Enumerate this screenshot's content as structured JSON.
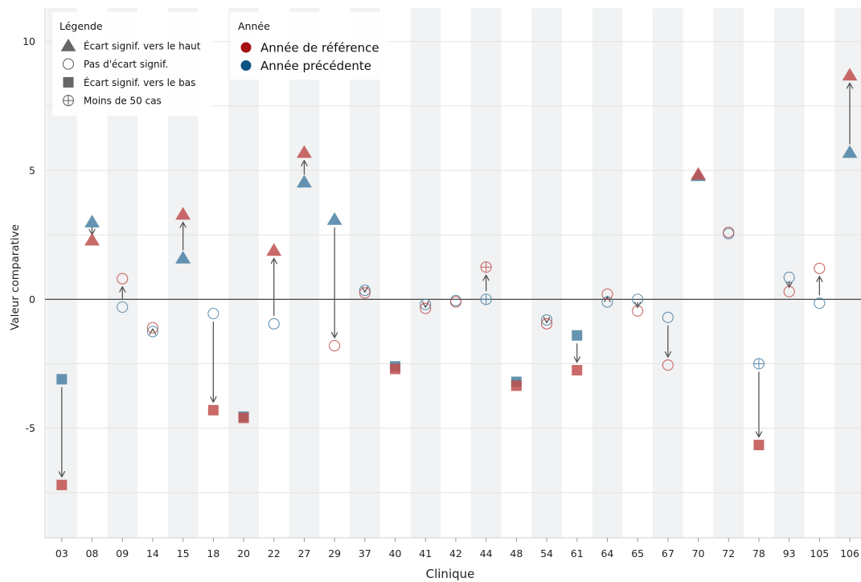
{
  "colors": {
    "reference": "#c0504d",
    "previous": "#4a81a3",
    "legend_reference": "#a50f15",
    "legend_previous": "#0b5483",
    "band": "#f1f2f3",
    "arrow": "#555555",
    "legend_shape": "#666666"
  },
  "legend": {
    "symbols_title": "Légende",
    "symbols": [
      {
        "shape": "triangle",
        "label": "Écart signif. vers le haut"
      },
      {
        "shape": "circle",
        "label": "Pas d'écart signif."
      },
      {
        "shape": "square",
        "label": "Écart signif. vers le bas"
      },
      {
        "shape": "crosscircle",
        "label": "Moins de 50 cas"
      }
    ],
    "years_title": "Année",
    "years": [
      {
        "key": "reference",
        "label": "Année de référence"
      },
      {
        "key": "previous",
        "label": "Année précédente"
      }
    ]
  },
  "chart_data": {
    "type": "scatter",
    "xlabel": "Clinique",
    "ylabel": "Valeur comparative",
    "ylim": [
      -9.25,
      11.3
    ],
    "yticks": [
      -5,
      0,
      5,
      10
    ],
    "grid": true,
    "legend_placement": "top-left",
    "categories": [
      "03",
      "08",
      "09",
      "14",
      "15",
      "18",
      "20",
      "22",
      "27",
      "29",
      "37",
      "40",
      "41",
      "42",
      "44",
      "48",
      "54",
      "61",
      "64",
      "65",
      "67",
      "70",
      "72",
      "78",
      "93",
      "105",
      "106"
    ],
    "series": [
      {
        "name": "Année de référence",
        "values": [
          -7.2,
          2.3,
          0.8,
          -1.1,
          3.3,
          -4.3,
          -4.6,
          1.9,
          5.7,
          -1.8,
          0.25,
          -2.7,
          -0.35,
          -0.1,
          1.25,
          -3.35,
          -0.95,
          -2.75,
          0.2,
          -0.45,
          -2.55,
          4.85,
          2.6,
          -5.65,
          0.3,
          1.2,
          8.7
        ],
        "markers": [
          "square",
          "triangle",
          "circle",
          "circle",
          "triangle",
          "square",
          "square",
          "triangle",
          "triangle",
          "circle",
          "circle",
          "square",
          "circle",
          "circle",
          "crosscircle",
          "square",
          "circle",
          "square",
          "circle",
          "circle",
          "circle",
          "triangle",
          "circle",
          "square",
          "circle",
          "circle",
          "triangle"
        ]
      },
      {
        "name": "Année précédente",
        "values": [
          -3.1,
          3.0,
          -0.3,
          -1.25,
          1.6,
          -0.55,
          -4.55,
          -0.95,
          4.55,
          3.1,
          0.35,
          -2.6,
          -0.2,
          -0.05,
          0.0,
          -3.2,
          -0.8,
          -1.4,
          -0.1,
          0.0,
          -0.7,
          4.8,
          2.55,
          -2.5,
          0.85,
          -0.15,
          5.7
        ],
        "markers": [
          "square",
          "triangle",
          "circle",
          "circle",
          "triangle",
          "circle",
          "square",
          "circle",
          "triangle",
          "triangle",
          "circle",
          "square",
          "circle",
          "circle",
          "crosscircle",
          "square",
          "circle",
          "square",
          "circle",
          "circle",
          "circle",
          "triangle",
          "circle",
          "crosscircle",
          "circle",
          "circle",
          "triangle"
        ]
      }
    ]
  }
}
